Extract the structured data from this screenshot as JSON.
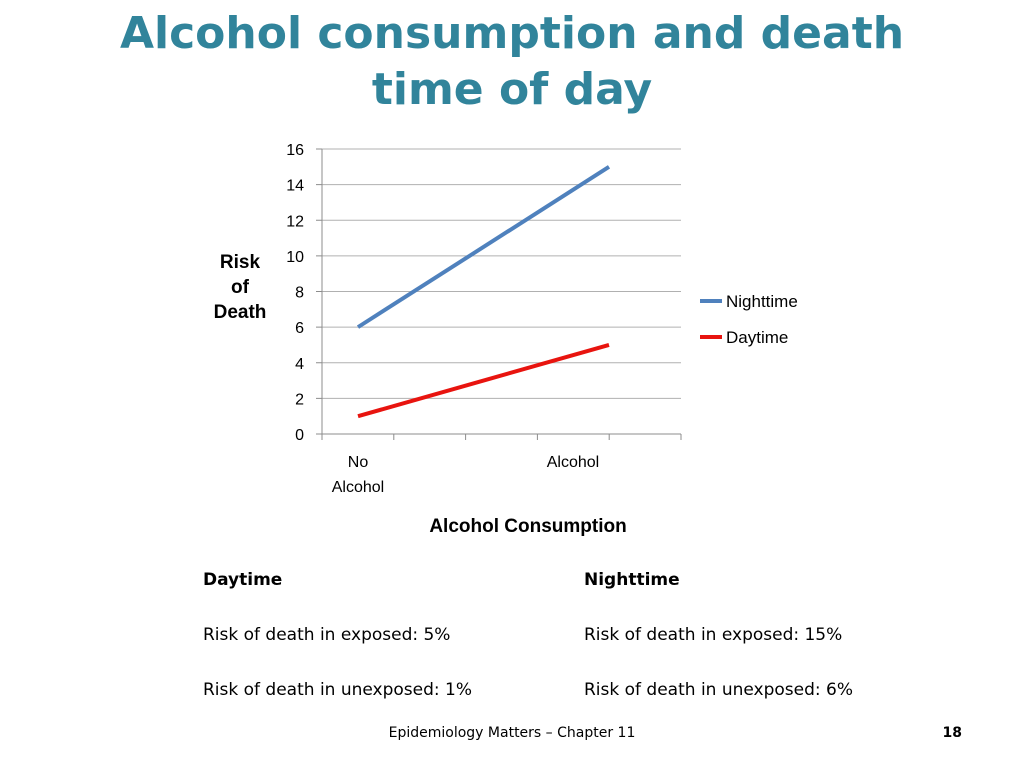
{
  "slide": {
    "title_line1": "Alcohol consumption and death",
    "title_line2": "time of day",
    "title_color": "#31849B"
  },
  "chart_data": {
    "type": "line",
    "categories": [
      "No\nAlcohol",
      "Alcohol"
    ],
    "series": [
      {
        "name": "Nighttime",
        "values": [
          6,
          15
        ],
        "color": "#4F81BD"
      },
      {
        "name": "Daytime",
        "values": [
          1,
          5
        ],
        "color": "#E8140F"
      }
    ],
    "xlabel": "Alcohol Consumption",
    "ylabel": "Risk\nof\nDeath",
    "ylim": [
      0,
      16
    ],
    "yticks": [
      "0",
      "2",
      "4",
      "6",
      "8",
      "10",
      "12",
      "14",
      "16"
    ],
    "grid": true,
    "legend_position": "right"
  },
  "info": {
    "daytime": {
      "heading": "Daytime",
      "exposed": "Risk of death in exposed: 5%",
      "unexposed": "Risk of death in unexposed: 1%"
    },
    "nighttime": {
      "heading": "Nighttime",
      "exposed": "Risk of death in exposed: 15%",
      "unexposed": "Risk of death in unexposed: 6%"
    }
  },
  "footer": {
    "text": "Epidemiology Matters – Chapter 11",
    "page_number": "18"
  }
}
